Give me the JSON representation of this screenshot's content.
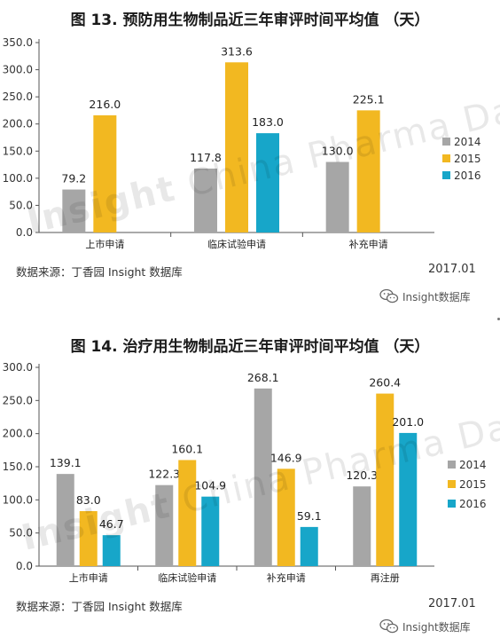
{
  "colors": {
    "s2014": "#a6a6a6",
    "s2015": "#f2b821",
    "s2016": "#17a6c9"
  },
  "watermark": {
    "brand": "Insight",
    "text": "China Pharma Data"
  },
  "chart_data": [
    {
      "type": "bar",
      "title": "图 13.  预防用生物制品近三年审评时间平均值 （天）",
      "categories": [
        "上市申请",
        "临床试验申请",
        "补充申请"
      ],
      "ylim": [
        0,
        350
      ],
      "yticks": [
        "0.0",
        "50.0",
        "100.0",
        "150.0",
        "200.0",
        "250.0",
        "300.0",
        "350.0"
      ],
      "series": [
        {
          "name": "2014",
          "values": [
            79.2,
            117.8,
            130.0
          ],
          "labels": [
            "79.2",
            "117.8",
            "130.0"
          ]
        },
        {
          "name": "2015",
          "values": [
            216.0,
            313.6,
            225.1
          ],
          "labels": [
            "216.0",
            "313.6",
            "225.1"
          ]
        },
        {
          "name": "2016",
          "values": [
            null,
            183.0,
            null
          ],
          "labels": [
            "",
            "183.0",
            ""
          ]
        }
      ],
      "legend_placement": "right",
      "source": "数据来源：丁香园 Insight 数据库",
      "date": "2017.01",
      "wechat": "Insight数据库"
    },
    {
      "type": "bar",
      "title": "图 14.  治疗用生物制品近三年审评时间平均值 （天）",
      "categories": [
        "上市申请",
        "临床试验申请",
        "补充申请",
        "再注册"
      ],
      "ylim": [
        0,
        300
      ],
      "yticks": [
        "0.0",
        "50.0",
        "100.0",
        "150.0",
        "200.0",
        "250.0",
        "300.0"
      ],
      "series": [
        {
          "name": "2014",
          "values": [
            139.1,
            122.3,
            268.1,
            120.3
          ],
          "labels": [
            "139.1",
            "122.3",
            "268.1",
            "120.3"
          ]
        },
        {
          "name": "2015",
          "values": [
            83.0,
            160.1,
            146.9,
            260.4
          ],
          "labels": [
            "83.0",
            "160.1",
            "146.9",
            "260.4"
          ]
        },
        {
          "name": "2016",
          "values": [
            46.7,
            104.9,
            59.1,
            201.0
          ],
          "labels": [
            "46.7",
            "104.9",
            "59.1",
            "201.0"
          ]
        }
      ],
      "legend_placement": "right",
      "source": "数据来源：丁香园 Insight 数据库",
      "date": "2017.01",
      "wechat": "Insight数据库"
    }
  ]
}
